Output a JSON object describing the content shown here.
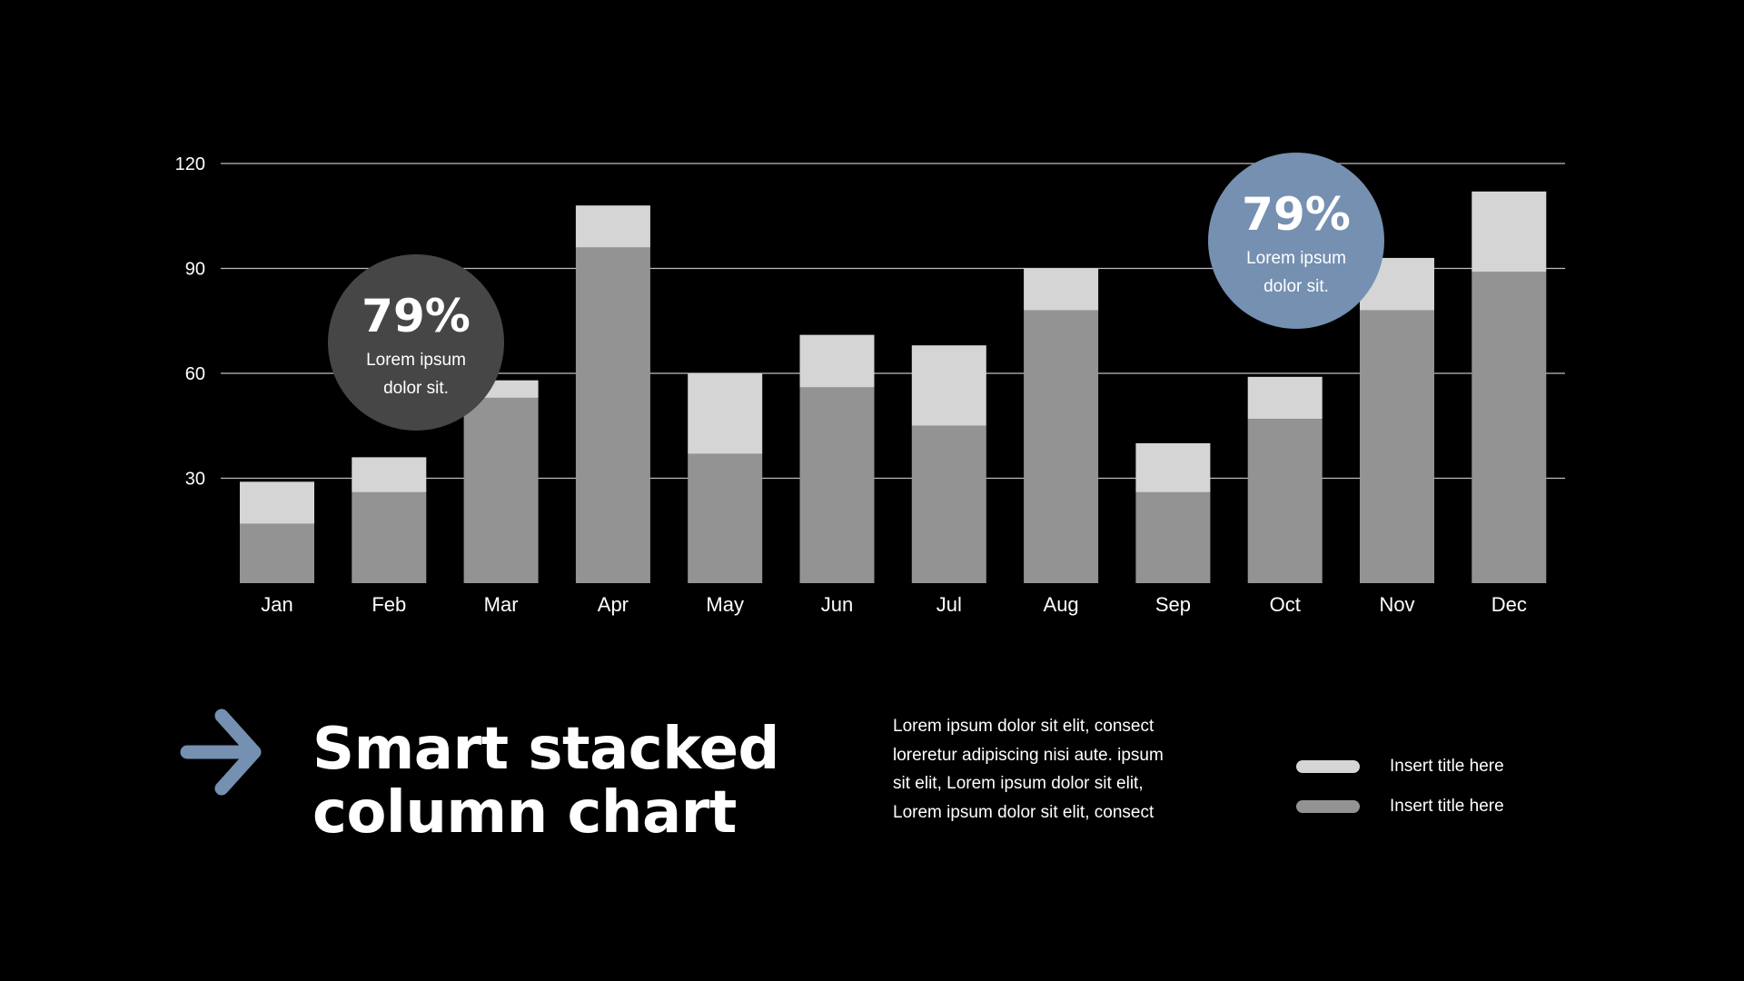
{
  "chart_data": {
    "type": "bar",
    "stacked": true,
    "categories": [
      "Jan",
      "Feb",
      "Mar",
      "Apr",
      "May",
      "Jun",
      "Jul",
      "Aug",
      "Sep",
      "Oct",
      "Nov",
      "Dec"
    ],
    "series": [
      {
        "values": [
          17,
          26,
          53,
          96,
          37,
          56,
          45,
          78,
          26,
          47,
          78,
          89
        ],
        "color": "#939393"
      },
      {
        "values": [
          12,
          10,
          5,
          12,
          23,
          15,
          23,
          12,
          14,
          12,
          15,
          23
        ],
        "color": "#d5d5d5"
      }
    ],
    "yticks": [
      30,
      60,
      90,
      120
    ],
    "ylim": [
      0,
      120
    ],
    "grid": true
  },
  "badges": [
    {
      "value": "79%",
      "line1": "Lorem ipsum",
      "line2": "dolor sit.",
      "color": "#464646"
    },
    {
      "value": "79%",
      "line1": "Lorem ipsum",
      "line2": "dolor sit.",
      "color": "#7590b1"
    }
  ],
  "colors": {
    "accent": "#7590b1",
    "background": "#000000",
    "grid": "#bdbdbd"
  },
  "title": {
    "line1": "Smart stacked",
    "line2": "column chart"
  },
  "body_text": "Lorem ipsum dolor sit elit, consect loreretur adipiscing nisi aute. ipsum sit elit, Lorem ipsum dolor sit elit, Lorem ipsum dolor sit elit, consect",
  "legend": [
    {
      "label": "Insert title here",
      "color": "#d5d5d5"
    },
    {
      "label": "Insert title here",
      "color": "#939393"
    }
  ],
  "icons": {
    "arrow": "arrow-right-icon"
  }
}
